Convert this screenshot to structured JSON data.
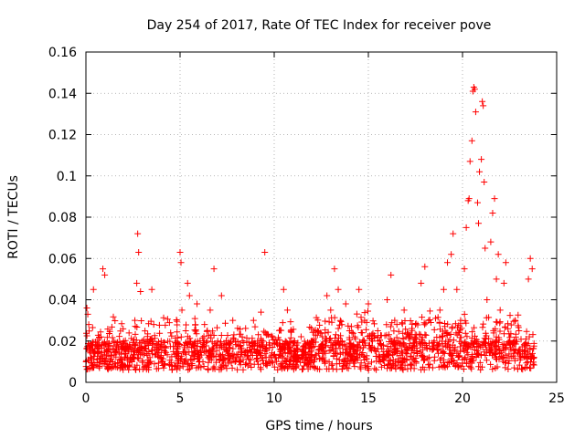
{
  "chart_data": {
    "type": "scatter",
    "title": "Day 254 of 2017, Rate Of TEC Index for receiver pove",
    "xlabel": "GPS time / hours",
    "ylabel": "ROTI / TECUs",
    "xlim": [
      0,
      25
    ],
    "ylim": [
      0,
      0.16
    ],
    "xticks": [
      0,
      5,
      10,
      15,
      20,
      25
    ],
    "xtick_labels": [
      "0",
      "5",
      "10",
      "15",
      "20",
      "25"
    ],
    "yticks": [
      0,
      0.02,
      0.04,
      0.06,
      0.08,
      0.1,
      0.12,
      0.14,
      0.16
    ],
    "ytick_labels": [
      "0",
      "0.02",
      "0.04",
      "0.06",
      "0.08",
      "0.1",
      "0.12",
      "0.14",
      "0.16"
    ],
    "grid": true,
    "marker": "plus",
    "marker_color": "#ff0000",
    "points": [
      [
        0.05,
        0.036
      ],
      [
        0.1,
        0.033
      ],
      [
        0.15,
        0.028
      ],
      [
        0.2,
        0.015
      ],
      [
        0.3,
        0.012
      ],
      [
        0.4,
        0.045
      ],
      [
        0.5,
        0.018
      ],
      [
        0.6,
        0.014
      ],
      [
        0.8,
        0.022
      ],
      [
        0.9,
        0.055
      ],
      [
        1.0,
        0.052
      ],
      [
        1.1,
        0.013
      ],
      [
        1.3,
        0.01
      ],
      [
        1.5,
        0.016
      ],
      [
        1.8,
        0.011
      ],
      [
        2.0,
        0.02
      ],
      [
        2.2,
        0.012
      ],
      [
        2.4,
        0.015
      ],
      [
        2.6,
        0.03
      ],
      [
        2.7,
        0.048
      ],
      [
        2.75,
        0.072
      ],
      [
        2.8,
        0.063
      ],
      [
        2.9,
        0.044
      ],
      [
        3.0,
        0.02
      ],
      [
        3.2,
        0.008
      ],
      [
        3.4,
        0.012
      ],
      [
        3.5,
        0.045
      ],
      [
        3.6,
        0.028
      ],
      [
        3.8,
        0.018
      ],
      [
        4.0,
        0.013
      ],
      [
        4.2,
        0.009
      ],
      [
        4.5,
        0.024
      ],
      [
        4.8,
        0.015
      ],
      [
        5.0,
        0.063
      ],
      [
        5.05,
        0.058
      ],
      [
        5.1,
        0.035
      ],
      [
        5.3,
        0.025
      ],
      [
        5.4,
        0.048
      ],
      [
        5.5,
        0.042
      ],
      [
        5.7,
        0.018
      ],
      [
        5.9,
        0.038
      ],
      [
        6.1,
        0.015
      ],
      [
        6.3,
        0.028
      ],
      [
        6.5,
        0.012
      ],
      [
        6.6,
        0.035
      ],
      [
        6.8,
        0.055
      ],
      [
        7.0,
        0.02
      ],
      [
        7.2,
        0.042
      ],
      [
        7.5,
        0.015
      ],
      [
        7.8,
        0.03
      ],
      [
        8.0,
        0.012
      ],
      [
        8.3,
        0.022
      ],
      [
        8.6,
        0.008
      ],
      [
        8.9,
        0.03
      ],
      [
        9.1,
        0.018
      ],
      [
        9.3,
        0.034
      ],
      [
        9.5,
        0.063
      ],
      [
        9.7,
        0.01
      ],
      [
        9.9,
        0.022
      ],
      [
        10.1,
        0.012
      ],
      [
        10.3,
        0.016
      ],
      [
        10.5,
        0.045
      ],
      [
        10.7,
        0.035
      ],
      [
        10.9,
        0.015
      ],
      [
        11.2,
        0.01
      ],
      [
        11.5,
        0.016
      ],
      [
        11.8,
        0.012
      ],
      [
        12.0,
        0.02
      ],
      [
        12.3,
        0.025
      ],
      [
        12.6,
        0.018
      ],
      [
        12.8,
        0.042
      ],
      [
        13.0,
        0.035
      ],
      [
        13.2,
        0.055
      ],
      [
        13.4,
        0.045
      ],
      [
        13.6,
        0.02
      ],
      [
        13.8,
        0.038
      ],
      [
        14.0,
        0.025
      ],
      [
        14.2,
        0.015
      ],
      [
        14.5,
        0.045
      ],
      [
        14.8,
        0.03
      ],
      [
        15.0,
        0.038
      ],
      [
        15.2,
        0.02
      ],
      [
        15.5,
        0.025
      ],
      [
        15.8,
        0.018
      ],
      [
        16.0,
        0.04
      ],
      [
        16.2,
        0.052
      ],
      [
        16.4,
        0.03
      ],
      [
        16.6,
        0.02
      ],
      [
        16.9,
        0.035
      ],
      [
        17.2,
        0.022
      ],
      [
        17.5,
        0.028
      ],
      [
        17.8,
        0.048
      ],
      [
        18.0,
        0.056
      ],
      [
        18.2,
        0.03
      ],
      [
        18.5,
        0.02
      ],
      [
        18.8,
        0.035
      ],
      [
        19.0,
        0.045
      ],
      [
        19.2,
        0.058
      ],
      [
        19.4,
        0.062
      ],
      [
        19.5,
        0.072
      ],
      [
        19.7,
        0.045
      ],
      [
        19.9,
        0.03
      ],
      [
        20.1,
        0.055
      ],
      [
        20.2,
        0.075
      ],
      [
        20.3,
        0.088
      ],
      [
        20.35,
        0.089
      ],
      [
        20.4,
        0.107
      ],
      [
        20.5,
        0.117
      ],
      [
        20.55,
        0.141
      ],
      [
        20.6,
        0.143
      ],
      [
        20.65,
        0.142
      ],
      [
        20.7,
        0.131
      ],
      [
        20.8,
        0.087
      ],
      [
        20.85,
        0.077
      ],
      [
        20.9,
        0.102
      ],
      [
        21.0,
        0.108
      ],
      [
        21.05,
        0.136
      ],
      [
        21.1,
        0.134
      ],
      [
        21.15,
        0.097
      ],
      [
        21.2,
        0.065
      ],
      [
        21.3,
        0.04
      ],
      [
        21.5,
        0.068
      ],
      [
        21.6,
        0.082
      ],
      [
        21.7,
        0.089
      ],
      [
        21.8,
        0.05
      ],
      [
        21.9,
        0.062
      ],
      [
        22.0,
        0.035
      ],
      [
        22.2,
        0.048
      ],
      [
        22.3,
        0.058
      ],
      [
        22.5,
        0.02
      ],
      [
        22.8,
        0.03
      ],
      [
        23.0,
        0.025
      ],
      [
        23.3,
        0.018
      ],
      [
        23.5,
        0.05
      ],
      [
        23.6,
        0.06
      ],
      [
        23.7,
        0.055
      ],
      [
        23.8,
        0.012
      ]
    ]
  }
}
